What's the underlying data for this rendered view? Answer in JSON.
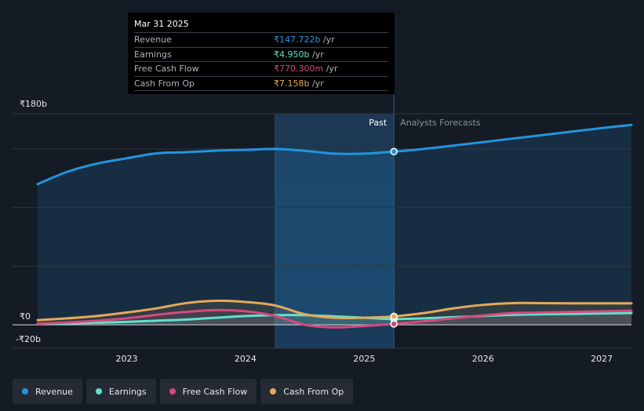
{
  "tooltip": {
    "date": "Mar 31 2025",
    "rows": [
      {
        "label": "Revenue",
        "value": "₹147.722b",
        "unit": "/yr",
        "color": "#2394df"
      },
      {
        "label": "Earnings",
        "value": "₹4.950b",
        "unit": "/yr",
        "color": "#5ee2cf"
      },
      {
        "label": "Free Cash Flow",
        "value": "₹770.300m",
        "unit": "/yr",
        "color": "#d6497d"
      },
      {
        "label": "Cash From Op",
        "value": "₹7.158b",
        "unit": "/yr",
        "color": "#e5a95a"
      }
    ]
  },
  "legend": [
    {
      "label": "Revenue",
      "color": "#2394df"
    },
    {
      "label": "Earnings",
      "color": "#5ee2cf"
    },
    {
      "label": "Free Cash Flow",
      "color": "#d6497d"
    },
    {
      "label": "Cash From Op",
      "color": "#e5a95a"
    }
  ],
  "chart_data": {
    "type": "line",
    "title": "",
    "xlabel": "",
    "ylabel": "",
    "unit": "INR billions",
    "ylim": [
      -20,
      180
    ],
    "xlim": [
      2022.25,
      2027.25
    ],
    "y_ticks": [
      {
        "value": 180,
        "label": "₹180b"
      },
      {
        "value": 0,
        "label": "₹0"
      },
      {
        "value": -20,
        "label": "-₹20b"
      }
    ],
    "x_ticks": [
      {
        "value": 2023.0,
        "label": "2023"
      },
      {
        "value": 2024.0,
        "label": "2024"
      },
      {
        "value": 2025.0,
        "label": "2025"
      },
      {
        "value": 2026.0,
        "label": "2026"
      },
      {
        "value": 2027.0,
        "label": "2027"
      }
    ],
    "past_label": "Past",
    "forecast_label": "Analysts Forecasts",
    "past_start": 2024.25,
    "divider": 2025.25,
    "series": [
      {
        "name": "Revenue",
        "color": "#2394df",
        "x": [
          2022.25,
          2022.5,
          2022.75,
          2023.0,
          2023.25,
          2023.5,
          2023.75,
          2024.0,
          2024.25,
          2024.5,
          2024.75,
          2025.0,
          2025.25,
          2025.5,
          2025.75,
          2026.0,
          2026.25,
          2026.5,
          2026.75,
          2027.0,
          2027.25
        ],
        "values": [
          120,
          130.5,
          137.5,
          142,
          146.2,
          147.2,
          148.5,
          149.2,
          150,
          148.4,
          146,
          146,
          147.7,
          150,
          152.8,
          155.8,
          158.8,
          161.8,
          164.8,
          167.8,
          170.5
        ]
      },
      {
        "name": "Earnings",
        "color": "#5ee2cf",
        "x": [
          2022.25,
          2022.5,
          2022.75,
          2023.0,
          2023.25,
          2023.5,
          2023.75,
          2024.0,
          2024.25,
          2024.5,
          2024.75,
          2025.0,
          2025.25,
          2025.5,
          2025.75,
          2026.0,
          2026.25,
          2026.5,
          2026.75,
          2027.0,
          2027.25
        ],
        "values": [
          1,
          1.3,
          1.8,
          2.5,
          3.5,
          4.5,
          6,
          7.5,
          8.2,
          8.2,
          7.2,
          6,
          4.95,
          5.5,
          6.5,
          7.5,
          8.5,
          9,
          9.3,
          9.6,
          10
        ]
      },
      {
        "name": "Free Cash Flow",
        "color": "#d6497d",
        "x": [
          2022.25,
          2022.5,
          2022.75,
          2023.0,
          2023.25,
          2023.5,
          2023.75,
          2024.0,
          2024.25,
          2024.5,
          2024.75,
          2025.0,
          2025.25,
          2025.5,
          2025.75,
          2026.0,
          2026.25,
          2026.5,
          2026.75,
          2027.0,
          2027.25
        ],
        "values": [
          1,
          2,
          3.5,
          5.5,
          8.5,
          11,
          12.5,
          11.5,
          7.5,
          0,
          -2.2,
          -1,
          0.77,
          3,
          5.5,
          8,
          10,
          10.5,
          11,
          11.5,
          12
        ]
      },
      {
        "name": "Cash From Op",
        "color": "#e5a95a",
        "x": [
          2022.25,
          2022.5,
          2022.75,
          2023.0,
          2023.25,
          2023.5,
          2023.75,
          2024.0,
          2024.25,
          2024.5,
          2024.75,
          2025.0,
          2025.25,
          2025.5,
          2025.75,
          2026.0,
          2026.25,
          2026.5,
          2026.75,
          2027.0,
          2027.25
        ],
        "values": [
          4,
          5.5,
          7.5,
          10.5,
          14,
          18.5,
          20.5,
          19.5,
          16.5,
          9,
          6,
          6,
          7.16,
          10,
          14,
          17,
          18.5,
          18.5,
          18.3,
          18.3,
          18.3
        ]
      }
    ],
    "highlight": {
      "x": 2025.25,
      "values": [
        147.7,
        4.95,
        0.77,
        7.16
      ]
    }
  }
}
